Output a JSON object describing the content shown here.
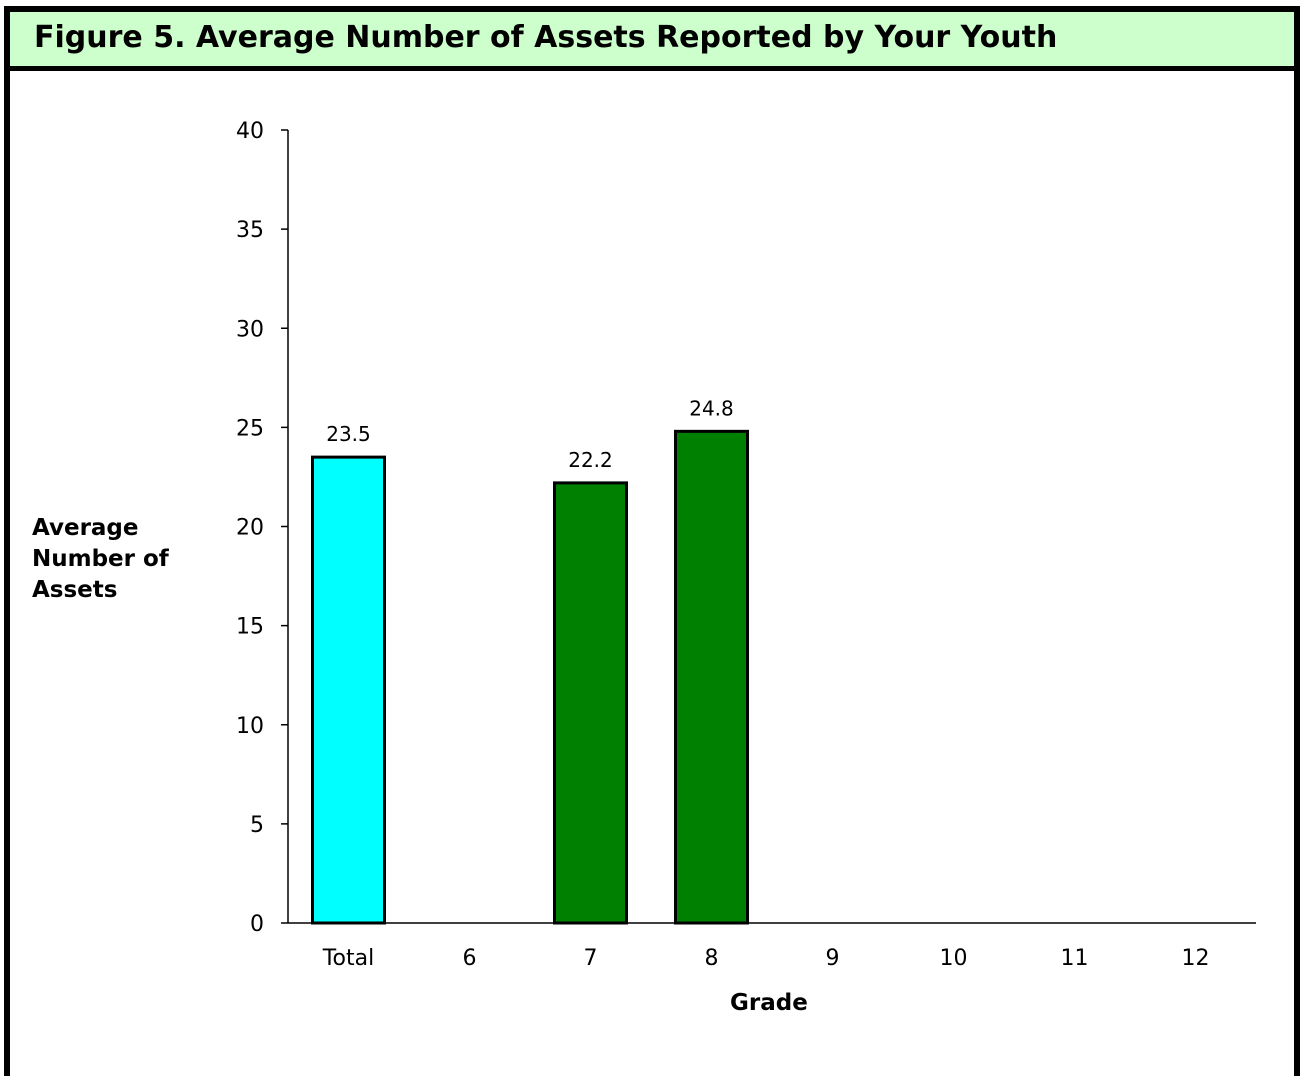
{
  "header": {
    "title": "Figure 5.  Average Number of Assets Reported by Your Youth",
    "background": "#ccffcc"
  },
  "chart_data": {
    "type": "bar",
    "categories": [
      "Total",
      "6",
      "7",
      "8",
      "9",
      "10",
      "11",
      "12"
    ],
    "values": [
      23.5,
      null,
      22.2,
      24.8,
      null,
      null,
      null,
      null
    ],
    "data_labels": [
      "23.5",
      "",
      "22.2",
      "24.8",
      "",
      "",
      "",
      ""
    ],
    "bar_colors": [
      "#00ffff",
      "#008000",
      "#008000",
      "#008000",
      "#008000",
      "#008000",
      "#008000",
      "#008000"
    ],
    "title": "Figure 5.  Average Number of Assets Reported by Your Youth",
    "xlabel": "Grade",
    "ylabel": "Average Number of Assets",
    "ylim": [
      0,
      40
    ],
    "yticks": [
      0,
      5,
      10,
      15,
      20,
      25,
      30,
      35,
      40
    ],
    "grid": false,
    "legend": "none"
  }
}
